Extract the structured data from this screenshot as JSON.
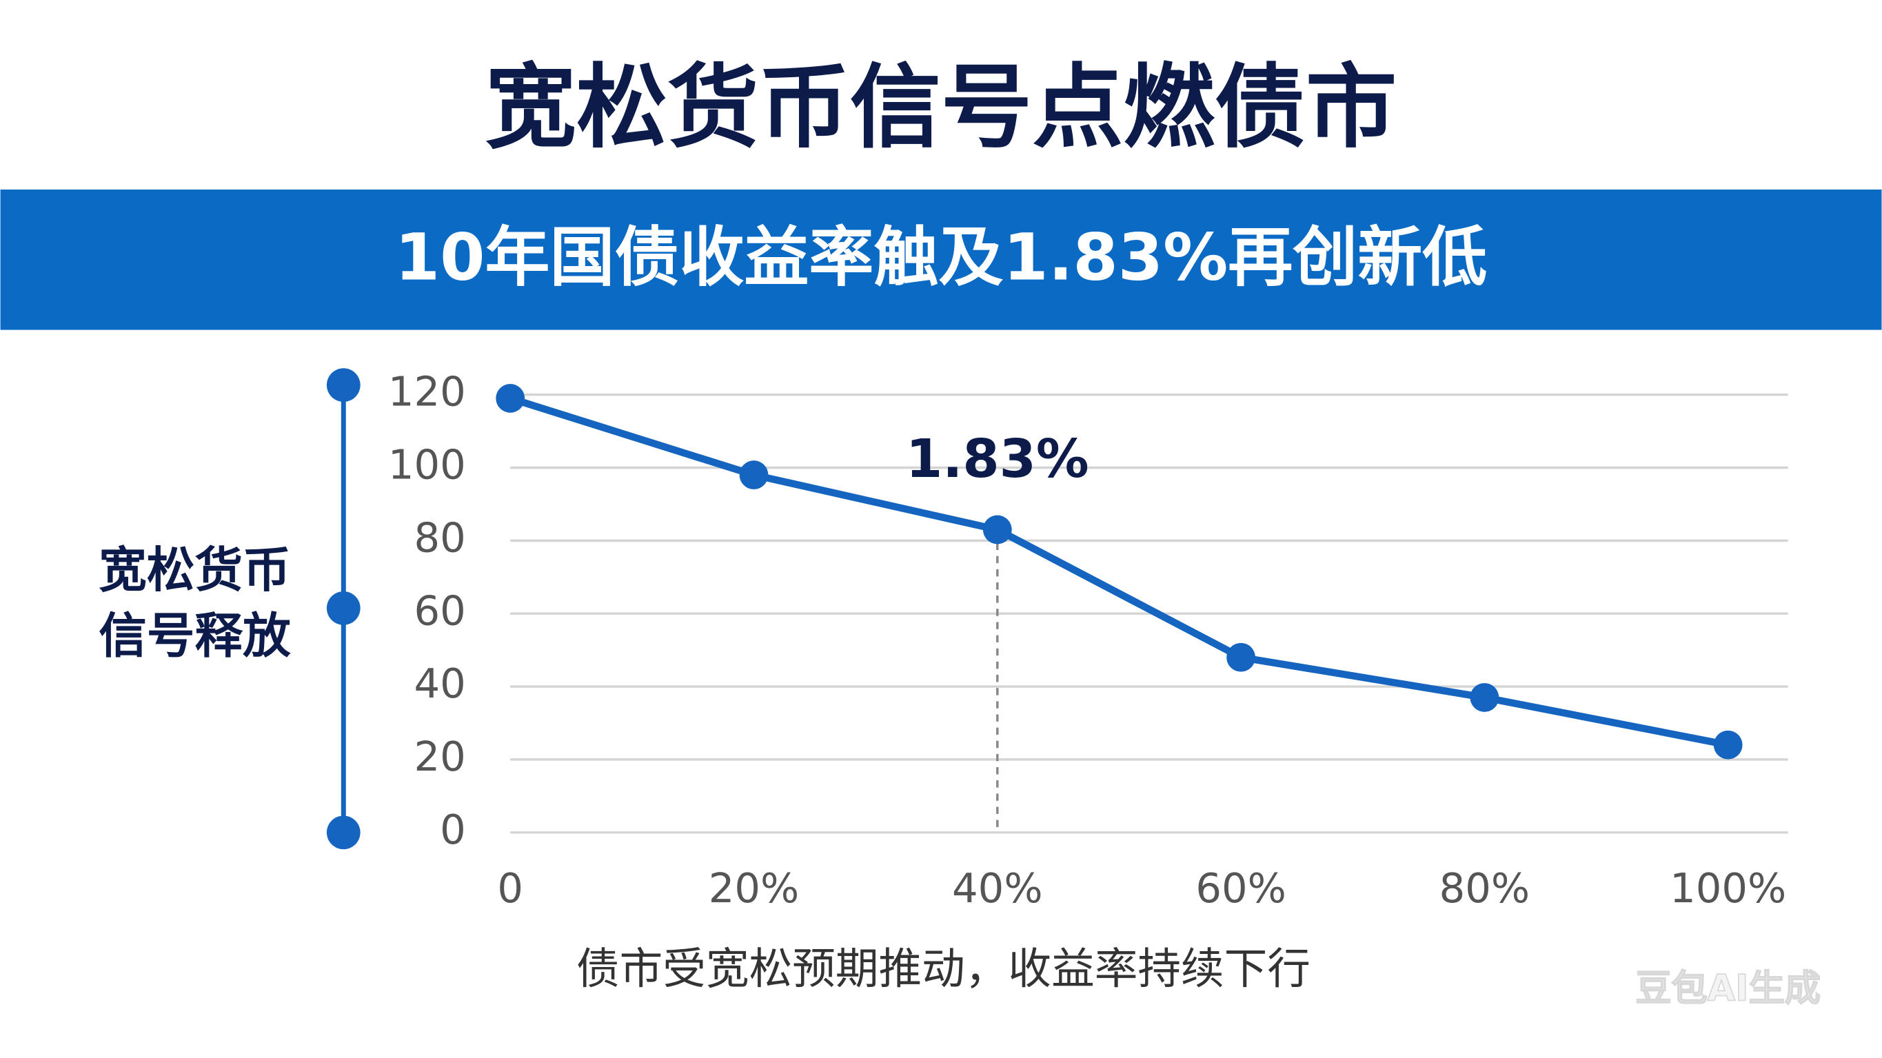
{
  "chart_data": {
    "type": "line",
    "title": "宽松货币信号点燃债市",
    "subtitle": "10年国债收益率触及1.83%再创新低",
    "y_label": [
      "宽松货币",
      "信号释放"
    ],
    "caption": "债市受宽松预期推动，收益率持续下行",
    "watermark": "豆包AI生成",
    "x": [
      0,
      20,
      40,
      60,
      80,
      100
    ],
    "values": [
      119,
      98,
      83,
      48,
      37,
      24
    ],
    "color": "#1565c0",
    "xlim": [
      0,
      100
    ],
    "xticks": [
      0,
      {
        "value": 20,
        "label": "20%"
      },
      {
        "value": 40,
        "label": "40%"
      },
      {
        "value": 60,
        "label": "60%"
      },
      {
        "value": 80,
        "label": "80%"
      },
      {
        "value": 100,
        "label": "100%"
      }
    ],
    "ylim": [
      0,
      120
    ],
    "yticks": [
      0,
      20,
      40,
      60,
      80,
      100,
      120
    ],
    "grid": true,
    "annotations": [
      {
        "text": "1.83%",
        "x": 40
      }
    ]
  }
}
